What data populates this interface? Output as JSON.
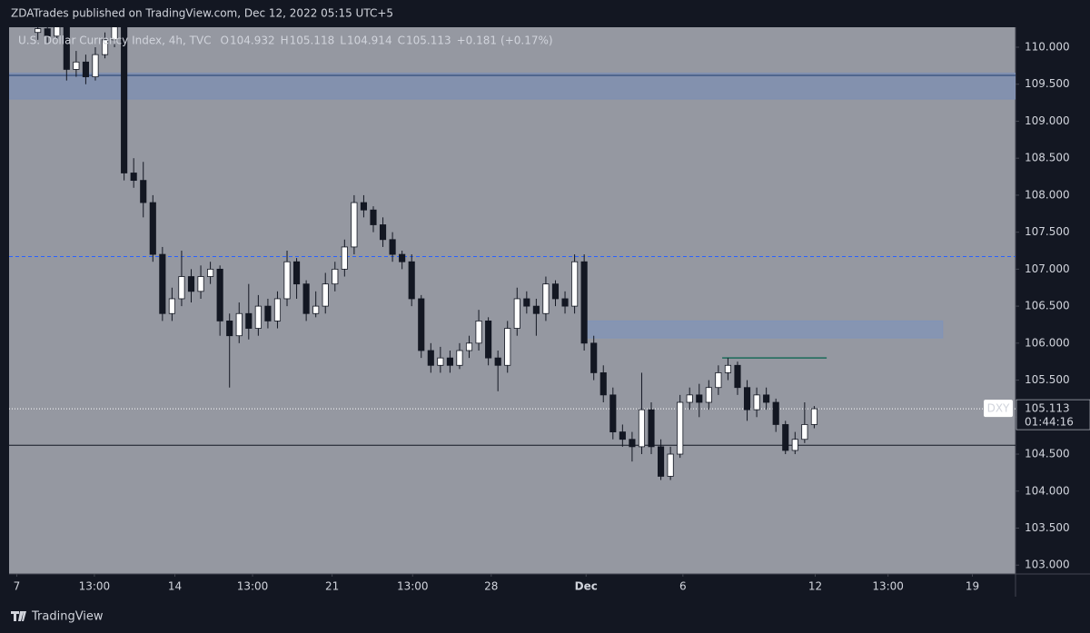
{
  "page": {
    "published": "ZDATrades published on TradingView.com, Dec 12, 2022 05:15 UTC+5",
    "brand": "TradingView"
  },
  "chart_data": {
    "type": "candlestick",
    "title": "U.S. Dollar Currency Index, 4h, TVC",
    "ohlc_legend": [
      {
        "key": "O",
        "value": 104.932
      },
      {
        "key": "H",
        "value": 105.118
      },
      {
        "key": "L",
        "value": 104.914
      },
      {
        "key": "C",
        "value": 105.113
      }
    ],
    "change": "+0.181",
    "change_pct": "(+0.17%)",
    "symbol": "DXY",
    "last_price": 105.113,
    "countdown": "01:44:16",
    "up_color": "#ffffff",
    "down_color": "#131722",
    "x": [
      3,
      4,
      5,
      6,
      7,
      8,
      9,
      10,
      11,
      12,
      13,
      14,
      15,
      16,
      17,
      18,
      19,
      20,
      21,
      22,
      23,
      24,
      25,
      26,
      27,
      28,
      29,
      30,
      31,
      32,
      33,
      34,
      35,
      36,
      37,
      38,
      39,
      40,
      41,
      42,
      43,
      44,
      45,
      46,
      47,
      48,
      49,
      50,
      51,
      52,
      53,
      54,
      55,
      56,
      57,
      58,
      59,
      60,
      61,
      62,
      63,
      64,
      65,
      66,
      67,
      68,
      69,
      70,
      71,
      72,
      73,
      74,
      75,
      76,
      77,
      78,
      79,
      80,
      81,
      82,
      83,
      84
    ],
    "open": [
      110.2,
      110.25,
      110.15,
      110.3,
      109.7,
      109.8,
      109.6,
      109.9,
      110.1,
      110.3,
      108.3,
      108.2,
      107.9,
      107.2,
      106.4,
      106.6,
      106.9,
      106.7,
      106.9,
      107.0,
      106.3,
      106.1,
      106.4,
      106.2,
      106.5,
      106.3,
      106.6,
      107.1,
      106.8,
      106.4,
      106.5,
      106.8,
      107.0,
      107.3,
      107.9,
      107.8,
      107.6,
      107.4,
      107.2,
      107.1,
      106.6,
      105.9,
      105.7,
      105.8,
      105.7,
      105.9,
      106.0,
      106.3,
      105.8,
      105.7,
      106.2,
      106.6,
      106.5,
      106.4,
      106.8,
      106.6,
      106.5,
      107.1,
      106.0,
      105.6,
      105.3,
      104.8,
      104.7,
      104.6,
      105.1,
      104.6,
      104.2,
      104.5,
      105.2,
      105.3,
      105.2,
      105.4,
      105.6,
      105.7,
      105.4,
      105.1,
      105.3,
      105.2,
      104.9,
      104.55,
      104.7,
      104.9
    ],
    "high": [
      110.35,
      110.3,
      110.4,
      110.35,
      109.95,
      109.9,
      110.0,
      110.2,
      110.4,
      110.35,
      108.5,
      108.45,
      108.0,
      107.3,
      106.75,
      107.25,
      107.0,
      107.05,
      107.1,
      107.05,
      106.4,
      106.55,
      106.8,
      106.65,
      106.6,
      106.7,
      107.25,
      107.15,
      106.85,
      106.7,
      106.95,
      107.1,
      107.4,
      108.0,
      108.0,
      107.85,
      107.7,
      107.5,
      107.25,
      107.2,
      106.65,
      106.0,
      105.95,
      105.9,
      106.0,
      106.1,
      106.45,
      106.35,
      105.9,
      106.3,
      106.75,
      106.7,
      106.6,
      106.9,
      106.85,
      106.7,
      107.2,
      107.2,
      106.1,
      105.7,
      105.4,
      104.9,
      104.8,
      105.6,
      105.2,
      104.7,
      104.6,
      105.3,
      105.4,
      105.45,
      105.5,
      105.7,
      105.8,
      105.75,
      105.5,
      105.4,
      105.4,
      105.25,
      104.95,
      104.8,
      105.2,
      105.15
    ],
    "low": [
      110.1,
      110.05,
      110.1,
      109.55,
      109.6,
      109.5,
      109.55,
      109.85,
      110.0,
      108.2,
      108.1,
      107.7,
      107.1,
      106.3,
      106.3,
      106.5,
      106.55,
      106.6,
      106.8,
      106.1,
      105.4,
      106.0,
      106.05,
      106.1,
      106.2,
      106.2,
      106.5,
      106.6,
      106.3,
      106.35,
      106.4,
      106.7,
      106.9,
      107.2,
      107.7,
      107.5,
      107.3,
      107.1,
      107.0,
      106.5,
      105.8,
      105.6,
      105.6,
      105.6,
      105.65,
      105.8,
      105.9,
      105.7,
      105.35,
      105.6,
      106.1,
      106.4,
      106.1,
      106.3,
      106.5,
      106.4,
      106.4,
      105.9,
      105.5,
      105.2,
      104.7,
      104.6,
      104.4,
      104.5,
      104.5,
      104.15,
      104.15,
      104.45,
      105.1,
      105.0,
      105.1,
      105.3,
      105.5,
      105.3,
      104.95,
      105.0,
      105.1,
      104.8,
      104.5,
      104.5,
      104.65,
      104.85
    ],
    "close": [
      110.25,
      110.15,
      110.3,
      109.7,
      109.8,
      109.6,
      109.9,
      110.1,
      110.3,
      108.3,
      108.2,
      107.9,
      107.2,
      106.4,
      106.6,
      106.9,
      106.7,
      106.9,
      107.0,
      106.3,
      106.1,
      106.4,
      106.2,
      106.5,
      106.3,
      106.6,
      107.1,
      106.8,
      106.4,
      106.5,
      106.8,
      107.0,
      107.3,
      107.9,
      107.8,
      107.6,
      107.4,
      107.2,
      107.1,
      106.6,
      105.9,
      105.7,
      105.8,
      105.7,
      105.9,
      106.0,
      106.3,
      105.8,
      105.7,
      106.2,
      106.6,
      106.5,
      106.4,
      106.8,
      106.6,
      106.5,
      107.1,
      106.0,
      105.6,
      105.3,
      104.8,
      104.7,
      104.6,
      105.1,
      104.6,
      104.2,
      104.5,
      105.2,
      105.3,
      105.2,
      105.4,
      105.6,
      105.7,
      105.4,
      105.1,
      105.3,
      105.2,
      104.9,
      104.55,
      104.7,
      104.9,
      105.113
    ],
    "xlim": [
      0,
      105
    ],
    "xticks": [
      {
        "value": 0.8,
        "label": "7"
      },
      {
        "value": 8.9,
        "label": "13:00"
      },
      {
        "value": 17.3,
        "label": "14"
      },
      {
        "value": 25.4,
        "label": "13:00"
      },
      {
        "value": 33.7,
        "label": "21"
      },
      {
        "value": 42.1,
        "label": "13:00"
      },
      {
        "value": 50.3,
        "label": "28"
      },
      {
        "value": 60.2,
        "label": "Dec"
      },
      {
        "value": 70.3,
        "label": "6"
      },
      {
        "value": 84.1,
        "label": "12"
      },
      {
        "value": 91.7,
        "label": "13:00"
      },
      {
        "value": 100.5,
        "label": "19"
      }
    ],
    "ylim": [
      102.88,
      110.27
    ],
    "yticks": [
      {
        "value": 103,
        "label": "103.000"
      },
      {
        "value": 103.5,
        "label": "103.500"
      },
      {
        "value": 104,
        "label": "104.000"
      },
      {
        "value": 104.5,
        "label": "104.500"
      },
      {
        "value": 105,
        "label": "105.000"
      },
      {
        "value": 105.5,
        "label": "105.500"
      },
      {
        "value": 106,
        "label": "106.000"
      },
      {
        "value": 106.5,
        "label": "106.500"
      },
      {
        "value": 107,
        "label": "107.000"
      },
      {
        "value": 107.5,
        "label": "107.500"
      },
      {
        "value": 108,
        "label": "108.000"
      },
      {
        "value": 108.5,
        "label": "108.500"
      },
      {
        "value": 109,
        "label": "109.000"
      },
      {
        "value": 109.5,
        "label": "109.500"
      },
      {
        "value": 110,
        "label": "110.000"
      }
    ],
    "zones": [
      {
        "x": [
          0,
          105
        ],
        "y": [
          109.3,
          109.65
        ],
        "color": "#7d8fb3"
      },
      {
        "x": [
          60,
          97.4
        ],
        "y": [
          106.07,
          106.3
        ],
        "color": "#8194b8"
      }
    ],
    "levels": [
      {
        "value": 109.62,
        "color": "#1e3a6e",
        "style": "solid"
      },
      {
        "value": 107.17,
        "color": "#2962ff",
        "style": "dashed"
      },
      {
        "value": 104.62,
        "color": "#131722",
        "style": "solid"
      }
    ],
    "segments": [
      {
        "value": 105.8,
        "x": [
          74.4,
          85.3
        ],
        "color": "#1b6b5a"
      }
    ]
  }
}
